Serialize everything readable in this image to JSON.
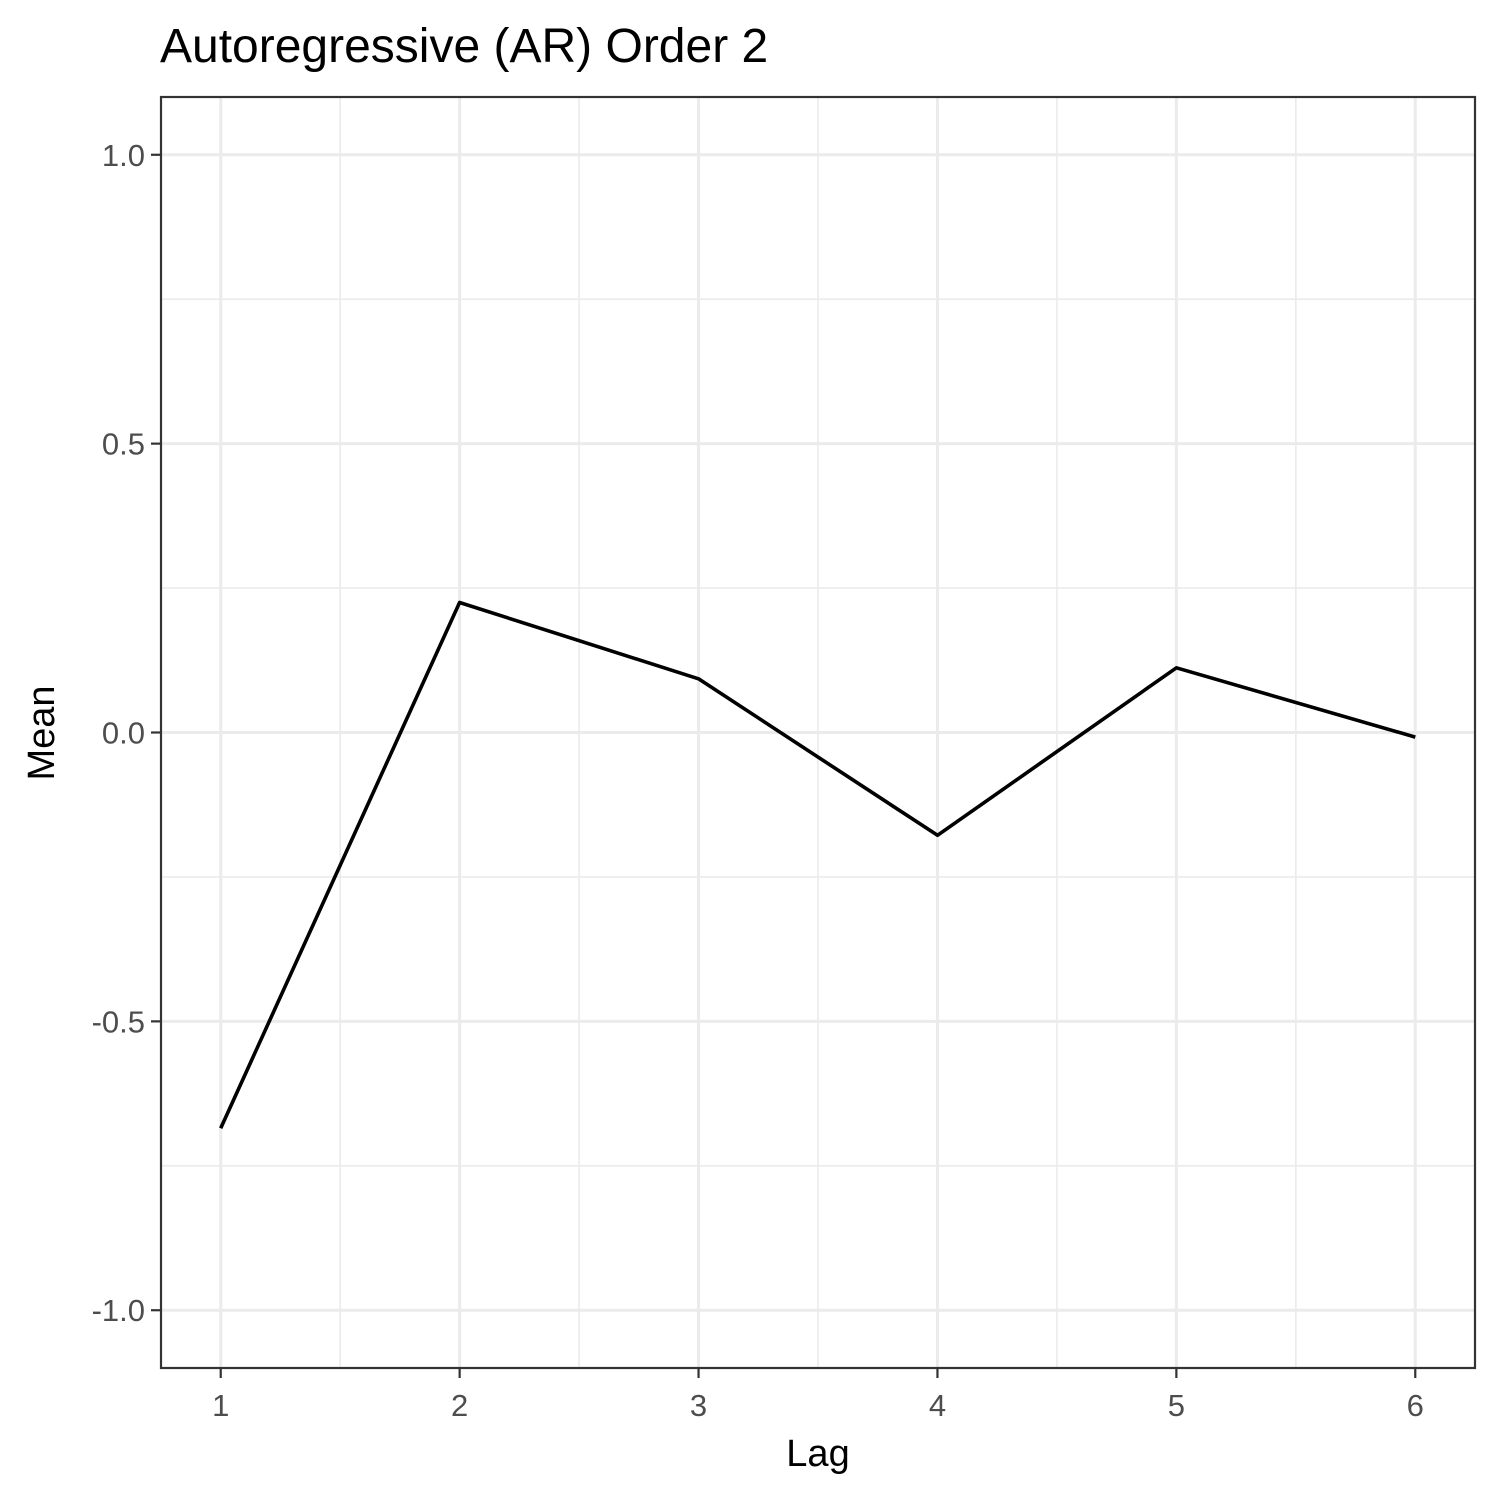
{
  "chart_data": {
    "type": "line",
    "title": "Autoregressive (AR) Order 2",
    "xlabel": "Lag",
    "ylabel": "Mean",
    "x": [
      1,
      2,
      3,
      4,
      5,
      6
    ],
    "series": [
      {
        "values": [
          -0.685,
          0.225,
          0.093,
          -0.178,
          0.112,
          -0.008
        ]
      }
    ],
    "xlim": [
      0.75,
      6.25
    ],
    "ylim": [
      -1.1,
      1.1
    ],
    "x_ticks": [
      "1",
      "2",
      "3",
      "4",
      "5",
      "6"
    ],
    "y_ticks": [
      "-1.0",
      "-0.5",
      "0.0",
      "0.5",
      "1.0"
    ],
    "grid": true,
    "line_color": "#000000",
    "theme": "bw"
  }
}
